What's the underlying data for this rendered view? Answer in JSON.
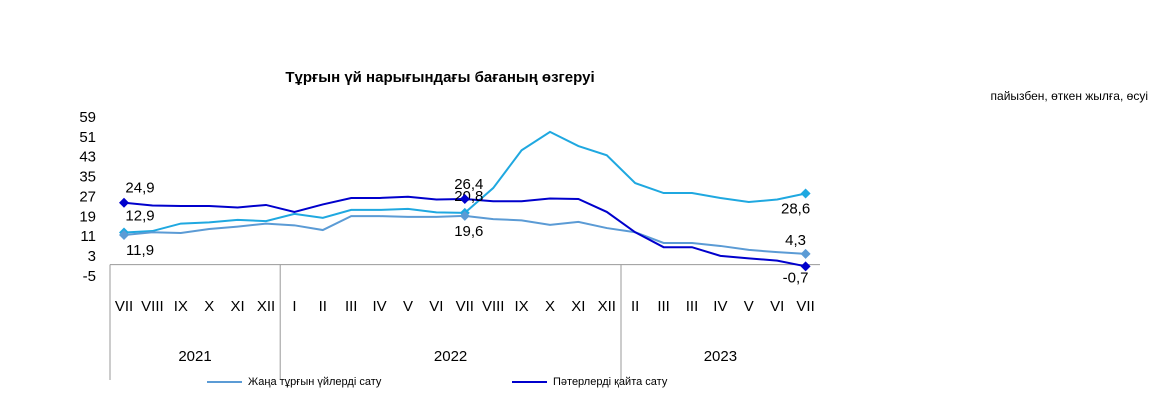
{
  "chart_data": {
    "type": "line",
    "title": "Тұрғын үй нарығындағы бағаның өзгеруі",
    "subtitle": "пайызбен, өткен жылға, өсуі",
    "categories": [
      "VII",
      "VIII",
      "IX",
      "X",
      "XI",
      "XII",
      "I",
      "II",
      "III",
      "IV",
      "V",
      "VI",
      "VII",
      "VIII",
      "IX",
      "X",
      "XI",
      "XII",
      "II",
      "III",
      "III",
      "IV",
      "V",
      "VI",
      "VII"
    ],
    "years": [
      "2021",
      "2022",
      "2023"
    ],
    "ylim": [
      -5,
      59
    ],
    "yticks": [
      -5,
      3,
      11,
      19,
      27,
      35,
      43,
      51,
      59
    ],
    "series": [
      {
        "color": "#1fa8e0",
        "values": [
          12.9,
          13.5,
          16.5,
          17,
          18,
          17.5,
          20.4,
          18.8,
          22,
          22,
          22.4,
          21,
          20.8,
          30.8,
          46,
          53.4,
          47.7,
          44,
          32.8,
          28.8,
          28.8,
          26.8,
          25.2,
          26.2,
          28.6
        ],
        "value_labels": [
          "12,9",
          null,
          null,
          null,
          null,
          null,
          null,
          null,
          null,
          null,
          null,
          null,
          "20,8",
          null,
          null,
          null,
          null,
          null,
          null,
          null,
          null,
          null,
          null,
          null,
          "28,6"
        ]
      },
      {
        "name": "Жаңа тұрғын үйлерді сату",
        "color": "#5b9bd5",
        "values": [
          11.9,
          13,
          12.7,
          14.3,
          15.3,
          16.5,
          15.8,
          13.9,
          19.5,
          19.5,
          19.2,
          19.2,
          19.6,
          18.3,
          17.8,
          16,
          17.2,
          14.7,
          13,
          8.7,
          8.7,
          7.5,
          5.9,
          5,
          4.3
        ],
        "value_labels": [
          "11,9",
          null,
          null,
          null,
          null,
          null,
          null,
          null,
          null,
          null,
          null,
          null,
          "19,6",
          null,
          null,
          null,
          null,
          null,
          null,
          null,
          null,
          null,
          null,
          null,
          "4,3"
        ]
      },
      {
        "name": "Пәтерлерді қайта сату",
        "color": "#0000cc",
        "values": [
          24.9,
          23.8,
          23.6,
          23.6,
          23,
          24,
          21.2,
          24.2,
          26.8,
          26.8,
          27.3,
          26.2,
          26.4,
          25.5,
          25.5,
          26.6,
          26.4,
          21.2,
          13,
          7,
          7,
          3.5,
          2.5,
          1.6,
          -0.7
        ],
        "value_labels": [
          "24,9",
          null,
          null,
          null,
          null,
          null,
          null,
          null,
          null,
          null,
          null,
          null,
          "26,4",
          null,
          null,
          null,
          null,
          null,
          null,
          null,
          null,
          null,
          null,
          null,
          "-0,7"
        ]
      }
    ]
  }
}
